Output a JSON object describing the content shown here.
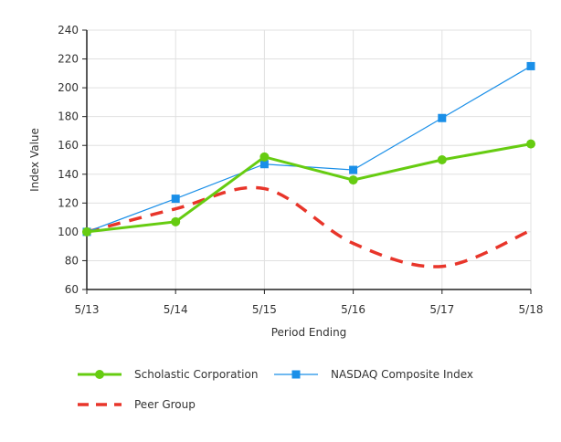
{
  "chart_data": {
    "type": "line",
    "xlabel": "Period Ending",
    "ylabel": "Index Value",
    "categories": [
      "5/13",
      "5/14",
      "5/15",
      "5/16",
      "5/17",
      "5/18"
    ],
    "ylim": [
      60,
      240
    ],
    "yticks": [
      60,
      80,
      100,
      120,
      140,
      160,
      180,
      200,
      220,
      240
    ],
    "grid": true,
    "legend_placement": "bottom",
    "series": [
      {
        "name": "Scholastic Corporation",
        "values": [
          100,
          107,
          152,
          136,
          150,
          161
        ],
        "color": "#66cc11",
        "marker": "circle",
        "style": "solid-thick"
      },
      {
        "name": "NASDAQ Composite Index",
        "values": [
          100,
          123,
          147,
          143,
          179,
          215
        ],
        "color": "#1a8fe8",
        "marker": "square",
        "style": "solid-thin"
      },
      {
        "name": "Peer Group",
        "values": [
          100,
          116,
          130,
          92,
          76,
          101
        ],
        "color": "#e8352a",
        "marker": "none",
        "style": "dashed-smooth"
      }
    ]
  }
}
